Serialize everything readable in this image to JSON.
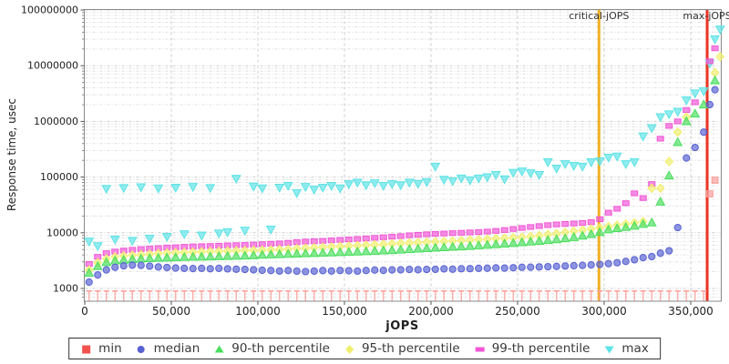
{
  "chart_data": {
    "type": "scatter",
    "title": "",
    "xlabel": "jOPS",
    "ylabel": "Response time, usec",
    "x_axis": {
      "min": 0,
      "max": 368000,
      "tick_values": [
        0,
        50000,
        100000,
        150000,
        200000,
        250000,
        300000,
        350000
      ],
      "tick_labels": [
        "0",
        "50,000",
        "100,000",
        "150,000",
        "200,000",
        "250,000",
        "300,000",
        "350,000"
      ]
    },
    "y_axis": {
      "scale": "log",
      "min": 1000,
      "max": 100000000,
      "tick_values": [
        1000,
        10000,
        100000,
        1000000,
        10000000,
        100000000
      ],
      "tick_labels": [
        "1000",
        "10000",
        "100000",
        "1000000",
        "10000000",
        "100000000"
      ]
    },
    "grid": {
      "style": "dashed",
      "major_color": "#cccccc",
      "minor_color": "#dcdcdc"
    },
    "annotations": [
      {
        "name": "critical-jops-line",
        "label": "critical-jOPS",
        "x": 297000,
        "color": "#f2b024"
      },
      {
        "name": "max-jops-line",
        "label": "max-jOPS",
        "x": 359500,
        "color": "#ec3424"
      }
    ],
    "jops": [
      2500,
      7500,
      12500,
      17500,
      22500,
      27500,
      32500,
      37500,
      42500,
      47500,
      52500,
      57500,
      62500,
      67500,
      72500,
      77500,
      82500,
      87500,
      92500,
      97500,
      102500,
      107500,
      112500,
      117500,
      122500,
      127500,
      132500,
      137500,
      142500,
      147500,
      152500,
      157500,
      162500,
      167500,
      172500,
      177500,
      182500,
      187500,
      192500,
      197500,
      202500,
      207500,
      212500,
      217500,
      222500,
      227500,
      232500,
      237500,
      242500,
      247500,
      252500,
      257500,
      262500,
      267500,
      272500,
      277500,
      282500,
      287500,
      292500,
      297500,
      302500,
      307500,
      312500,
      317500,
      322500,
      327500,
      332500,
      337500,
      342500,
      347500,
      352500,
      357500,
      361000,
      364000,
      367000
    ],
    "series": [
      {
        "name": "min",
        "label": "min",
        "shape": "square",
        "render": "stem",
        "color": "#f4524d",
        "plot_color": "#fa9e9a",
        "values": [
          900,
          900,
          900,
          900,
          900,
          900,
          900,
          900,
          900,
          900,
          900,
          900,
          900,
          900,
          900,
          900,
          900,
          900,
          900,
          900,
          900,
          900,
          900,
          900,
          900,
          900,
          900,
          900,
          900,
          900,
          900,
          900,
          900,
          900,
          900,
          900,
          900,
          900,
          900,
          900,
          900,
          900,
          900,
          900,
          900,
          900,
          900,
          900,
          900,
          900,
          900,
          900,
          900,
          900,
          900,
          900,
          900,
          900,
          900,
          900,
          900,
          900,
          900,
          900,
          900,
          900,
          900,
          900,
          900,
          900,
          900,
          900,
          50000,
          88000,
          null
        ]
      },
      {
        "name": "median",
        "label": "median",
        "shape": "circle",
        "color": "#5761d2",
        "values": [
          1300,
          1750,
          2150,
          2400,
          2550,
          2620,
          2600,
          2520,
          2430,
          2380,
          2330,
          2300,
          2280,
          2300,
          2260,
          2300,
          2250,
          2220,
          2200,
          2160,
          2120,
          2100,
          2060,
          2100,
          2050,
          2010,
          2050,
          2090,
          2060,
          2100,
          2080,
          2050,
          2100,
          2140,
          2110,
          2150,
          2160,
          2200,
          2170,
          2200,
          2210,
          2250,
          2220,
          2260,
          2270,
          2300,
          2310,
          2340,
          2320,
          2360,
          2400,
          2410,
          2440,
          2460,
          2490,
          2530,
          2560,
          2600,
          2650,
          2700,
          2790,
          2900,
          3060,
          3280,
          3580,
          3730,
          4300,
          4750,
          12400,
          220000,
          340000,
          640000,
          2000000,
          3700000,
          null
        ]
      },
      {
        "name": "p90",
        "label": "90-th percentile",
        "shape": "triangle-up",
        "color": "#49df5e",
        "values": [
          1900,
          2500,
          2950,
          3150,
          3250,
          3350,
          3420,
          3480,
          3520,
          3560,
          3600,
          3640,
          3680,
          3700,
          3720,
          3760,
          3800,
          3840,
          3870,
          3900,
          4000,
          4050,
          4100,
          4150,
          4200,
          4250,
          4300,
          4350,
          4400,
          4450,
          4500,
          4560,
          4620,
          4700,
          4780,
          4860,
          4950,
          5050,
          5150,
          5250,
          5350,
          5450,
          5550,
          5650,
          5750,
          5900,
          6050,
          6200,
          6350,
          6500,
          6700,
          6900,
          7100,
          7350,
          7600,
          7900,
          8300,
          8800,
          9400,
          10200,
          11400,
          12000,
          12600,
          13300,
          14300,
          15200,
          36000,
          106000,
          420000,
          1000000,
          1370000,
          2000000,
          null,
          5400000,
          null
        ]
      },
      {
        "name": "p95",
        "label": "95-th percentile",
        "shape": "diamond",
        "color": "#f1ef6b",
        "values": [
          2150,
          2900,
          3400,
          3700,
          3850,
          3950,
          4050,
          4150,
          4250,
          4350,
          4400,
          4450,
          4500,
          4550,
          4600,
          4650,
          4700,
          4750,
          4800,
          4850,
          4900,
          4950,
          5000,
          5100,
          5200,
          5300,
          5400,
          5500,
          5600,
          5700,
          5800,
          5900,
          6000,
          6100,
          6200,
          6350,
          6500,
          6600,
          6700,
          6800,
          6900,
          7000,
          7100,
          7250,
          7400,
          7550,
          7700,
          7850,
          8000,
          8150,
          8300,
          8600,
          8900,
          9300,
          9700,
          10200,
          10700,
          11200,
          11700,
          12300,
          13000,
          13700,
          14400,
          15100,
          15900,
          63000,
          63000,
          190000,
          640000,
          1200000,
          null,
          null,
          null,
          7500000,
          14500000
        ]
      },
      {
        "name": "p99",
        "label": "99-th percentile",
        "shape": "bar",
        "color": "#f156d7",
        "values": [
          2760,
          3700,
          4300,
          4600,
          4800,
          4950,
          5100,
          5200,
          5300,
          5430,
          5500,
          5600,
          5700,
          5750,
          5800,
          5850,
          5950,
          6000,
          6050,
          6150,
          6250,
          6350,
          6450,
          6600,
          6800,
          6950,
          7050,
          7150,
          7300,
          7450,
          7600,
          7750,
          7900,
          8100,
          8300,
          8500,
          8700,
          9000,
          9200,
          9400,
          9550,
          9700,
          9850,
          10000,
          10150,
          10300,
          10500,
          10800,
          11200,
          11700,
          12200,
          12700,
          13200,
          13700,
          14100,
          14400,
          14700,
          15000,
          15500,
          17500,
          23000,
          27000,
          34000,
          51000,
          42000,
          75000,
          490000,
          830000,
          1000000,
          1600000,
          2200000,
          null,
          12000000,
          20500000,
          null
        ]
      },
      {
        "name": "max",
        "label": "max",
        "shape": "triangle-down",
        "color": "#5ce3e6",
        "values": [
          7000,
          5800,
          62000,
          7600,
          64000,
          7200,
          66000,
          7900,
          63000,
          8500,
          65000,
          9500,
          67000,
          9000,
          64000,
          9800,
          10300,
          94000,
          11000,
          68000,
          63000,
          11500,
          65000,
          70000,
          52000,
          67000,
          60000,
          65000,
          70000,
          63000,
          75000,
          80000,
          72000,
          78000,
          70000,
          75000,
          72000,
          80000,
          76000,
          82000,
          155000,
          90000,
          85000,
          95000,
          88000,
          95000,
          100000,
          110000,
          92000,
          120000,
          127000,
          118000,
          110000,
          186000,
          143000,
          172000,
          160000,
          155000,
          186000,
          193000,
          225000,
          235000,
          172000,
          186000,
          540000,
          760000,
          1200000,
          1350000,
          1500000,
          2400000,
          3200000,
          3500000,
          11000000,
          30000000,
          45000000
        ]
      }
    ],
    "legend_position": "bottom-center"
  }
}
